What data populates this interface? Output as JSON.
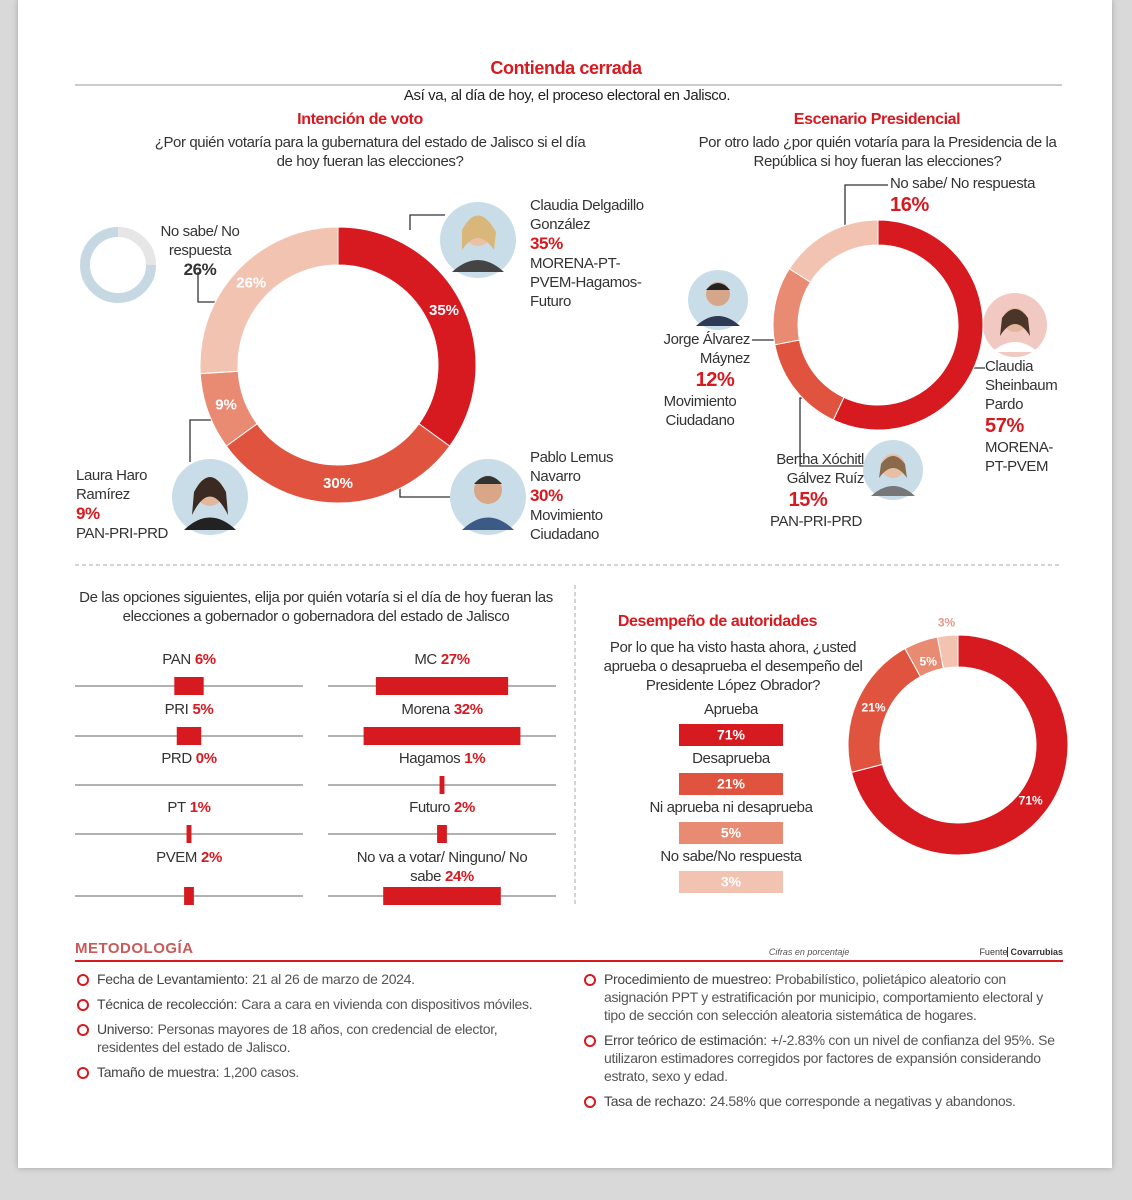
{
  "header": {
    "title": "Contienda cerrada",
    "subtitle": "Así va, al día de hoy, el proceso electoral en Jalisco."
  },
  "chart_data": [
    {
      "type": "donut",
      "title": "Intención de voto",
      "question": "¿Por quién votaría para la gubernatura del estado de Jalisco si el día de hoy fueran las elecciones?",
      "categories": [
        "Claudia Delgadillo González",
        "Pablo Lemus Navarro",
        "Laura Haro Ramírez",
        "No sabe/ No respuesta"
      ],
      "parties": [
        "MORENA-PT-PVEM-Hagamos-Futuro",
        "Movimiento Ciudadano",
        "PAN-PRI-PRD",
        null
      ],
      "values": [
        35,
        30,
        9,
        26
      ],
      "value_labels": [
        "35%",
        "30%",
        "9%",
        "26%"
      ],
      "colors": [
        "#d71920",
        "#e0533f",
        "#e98a72",
        "#f3c3b2"
      ]
    },
    {
      "type": "donut",
      "title": "Escenario Presidencial",
      "question": "Por otro lado ¿por quién votaría para la Presidencia de la República si hoy fueran las elecciones?",
      "categories": [
        "Claudia Sheinbaum Pardo",
        "Bertha Xóchitl Gálvez Ruíz",
        "Jorge Álvarez Máynez",
        "No sabe/ No respuesta"
      ],
      "parties": [
        "MORENA-PT-PVEM",
        "PAN-PRI-PRD",
        "Movimiento Ciudadano",
        null
      ],
      "values": [
        57,
        15,
        12,
        16
      ],
      "value_labels": [
        "57%",
        "15%",
        "12%",
        "16%"
      ],
      "colors": [
        "#d71920",
        "#e0533f",
        "#e98a72",
        "#f3c3b2"
      ]
    },
    {
      "type": "bar",
      "question": "De las opciones siguientes, elija por quién votaría si el día de hoy fueran las elecciones a gobernador o gobernadora del estado de Jalisco",
      "categories": [
        "PAN",
        "PRI",
        "PRD",
        "PT",
        "PVEM",
        "MC",
        "Morena",
        "Hagamos",
        "Futuro",
        "No va a votar/ Ninguno/ No sabe"
      ],
      "values": [
        6,
        5,
        0,
        1,
        2,
        27,
        32,
        1,
        2,
        24
      ],
      "value_labels": [
        "6%",
        "5%",
        "0%",
        "1%",
        "2%",
        "27%",
        "32%",
        "1%",
        "2%",
        "24%"
      ],
      "color": "#d71920"
    },
    {
      "type": "donut",
      "title": "Desempeño de autoridades",
      "question": "Por lo que ha visto hasta ahora, ¿usted aprueba o desaprueba el desempeño del Presidente López Obrador?",
      "categories": [
        "Aprueba",
        "Desaprueba",
        "Ni aprueba ni desaprueba",
        "No sabe/No respuesta"
      ],
      "values": [
        71,
        21,
        5,
        3
      ],
      "value_labels": [
        "71%",
        "21%",
        "5%",
        "3%"
      ],
      "colors": [
        "#d71920",
        "#e0533f",
        "#e98a72",
        "#f3c3b2"
      ]
    }
  ],
  "methodology": {
    "title": "METODOLOGÍA",
    "note": "Cifras en porcentaje",
    "source_label": "Fuente",
    "source": "Covarrubias",
    "columns": [
      [
        {
          "label": "Fecha de Levantamiento:",
          "text": "21 al 26 de marzo de 2024."
        },
        {
          "label": "Técnica de recolección:",
          "text": "Cara a cara en vivienda con dispositivos móviles."
        },
        {
          "label": "Universo:",
          "text": "Personas mayores de 18 años, con credencial de elector, residentes del estado de Jalisco."
        },
        {
          "label": "Tamaño de muestra:",
          "text": "1,200 casos."
        }
      ],
      [
        {
          "label": "Procedimiento de muestreo:",
          "text": "Probabilístico, polietápico aleatorio con asignación PPT y estratificación por municipio, comportamiento electoral y tipo de sección con selección aleatoria sistemática de hogares."
        },
        {
          "label": "Error teórico de estimación:",
          "text": "+/-2.83% con un nivel de confianza del 95%. Se utilizaron estimadores corregidos por factores de expansión considerando estrato, sexo y edad."
        },
        {
          "label": "Tasa de rechazo:",
          "text": "24.58% que corresponde a negativas y abandonos."
        }
      ]
    ]
  }
}
